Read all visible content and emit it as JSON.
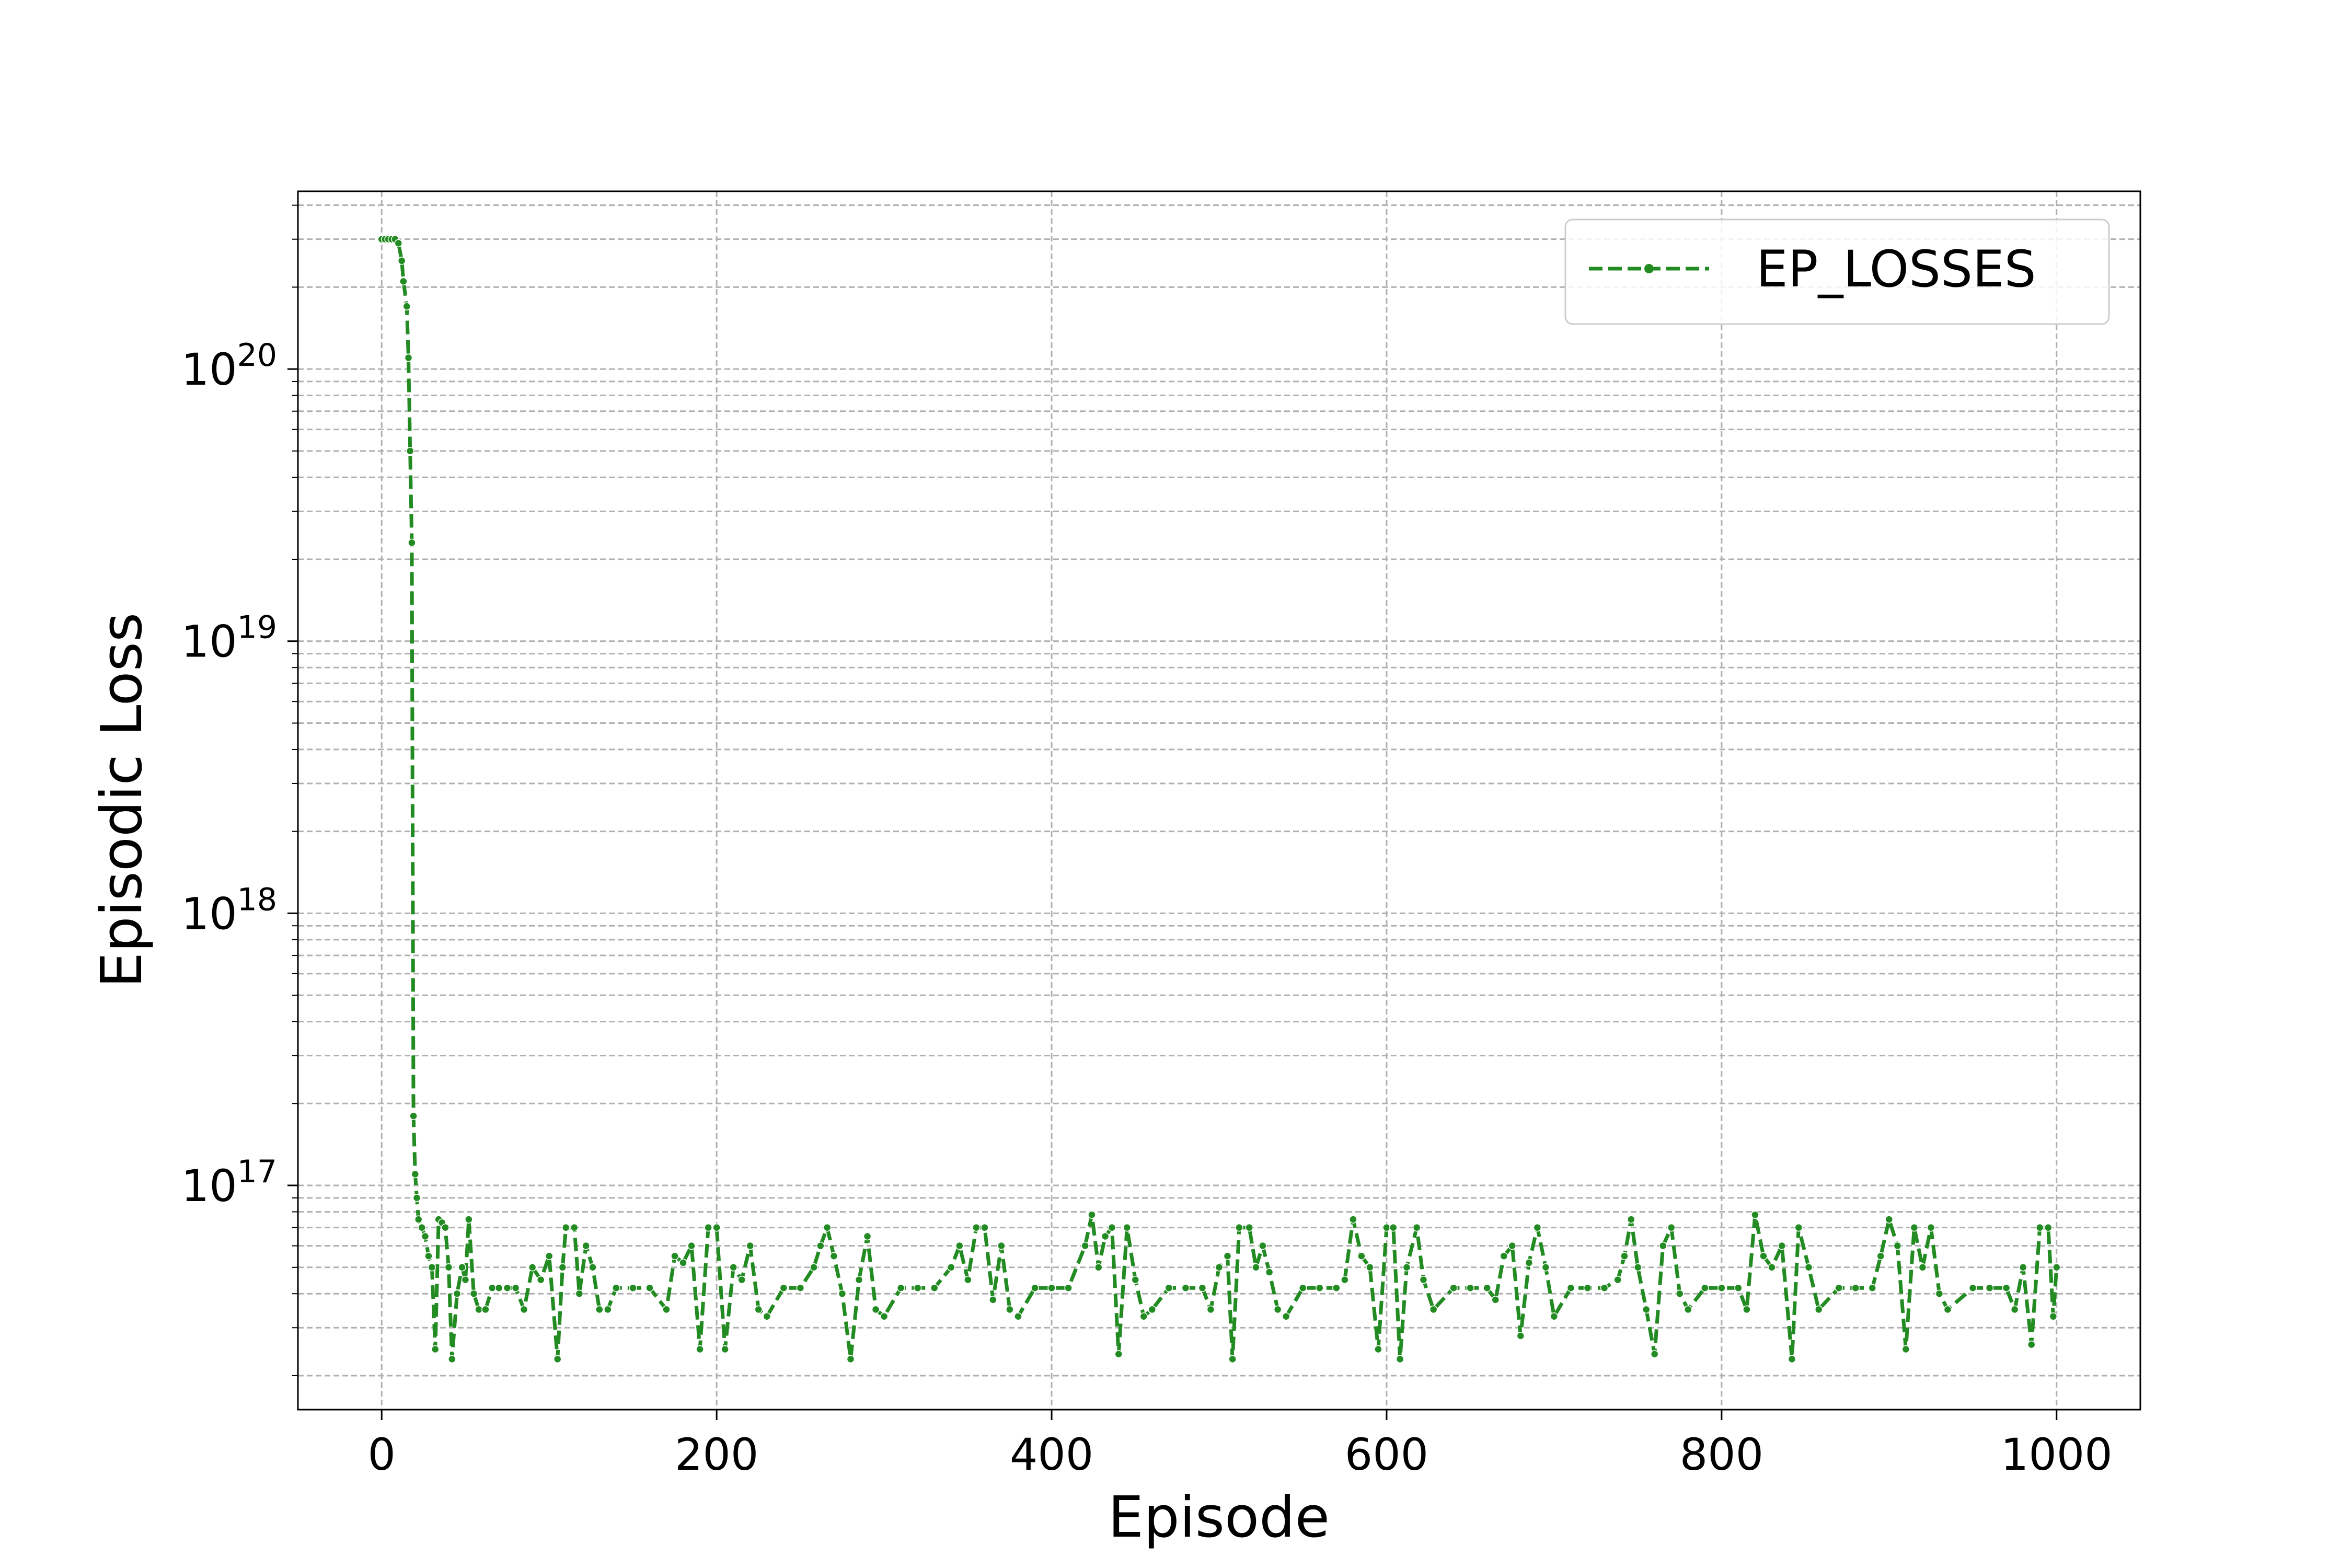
{
  "chart_data": {
    "type": "line",
    "title": "",
    "xlabel": "Episode",
    "ylabel": "Episodic Loss",
    "x_scale": "linear",
    "y_scale": "log",
    "xlim": [
      -50,
      1050
    ],
    "ylim": [
      1.5e+16,
      4.5e+20
    ],
    "x_ticks": [
      0,
      200,
      400,
      600,
      800,
      1000
    ],
    "x_tick_labels": [
      "0",
      "200",
      "400",
      "600",
      "800",
      "1000"
    ],
    "y_ticks": [
      1e+17,
      1e+18,
      1e+19,
      1e+20
    ],
    "y_tick_labels": [
      {
        "base": "10",
        "exp": "17"
      },
      {
        "base": "10",
        "exp": "18"
      },
      {
        "base": "10",
        "exp": "19"
      },
      {
        "base": "10",
        "exp": "20"
      }
    ],
    "grid": true,
    "grid_minor": true,
    "legend": {
      "placement": "top-right",
      "entries": [
        "EP_LOSSES"
      ]
    },
    "series": [
      {
        "name": "EP_LOSSES",
        "color": "#228B22",
        "line_style": "dashed",
        "marker": "circle",
        "points": [
          [
            0,
            3e+20
          ],
          [
            2,
            3e+20
          ],
          [
            4,
            3e+20
          ],
          [
            6,
            3e+20
          ],
          [
            8,
            3e+20
          ],
          [
            10,
            2.9e+20
          ],
          [
            12,
            2.5e+20
          ],
          [
            13,
            2.1e+20
          ],
          [
            15,
            1.7e+20
          ],
          [
            16,
            1.1e+20
          ],
          [
            17,
            5e+19
          ],
          [
            18,
            2.3e+19
          ],
          [
            19,
            1.8e+17
          ],
          [
            20,
            1.1e+17
          ],
          [
            21,
            9e+16
          ],
          [
            22,
            7.5e+16
          ],
          [
            24,
            7e+16
          ],
          [
            26,
            6.5e+16
          ],
          [
            28,
            5.5e+16
          ],
          [
            30,
            5e+16
          ],
          [
            32,
            2.5e+16
          ],
          [
            34,
            7.5e+16
          ],
          [
            36,
            7.3e+16
          ],
          [
            38,
            7e+16
          ],
          [
            40,
            5e+16
          ],
          [
            42,
            2.3e+16
          ],
          [
            45,
            4e+16
          ],
          [
            48,
            5e+16
          ],
          [
            50,
            4.5e+16
          ],
          [
            52,
            7.5e+16
          ],
          [
            55,
            4e+16
          ],
          [
            58,
            3.5e+16
          ],
          [
            62,
            3.5e+16
          ],
          [
            66,
            4.2e+16
          ],
          [
            70,
            4.2e+16
          ],
          [
            75,
            4.2e+16
          ],
          [
            80,
            4.2e+16
          ],
          [
            85,
            3.5e+16
          ],
          [
            90,
            5e+16
          ],
          [
            95,
            4.5e+16
          ],
          [
            100,
            5.5e+16
          ],
          [
            105,
            2.3e+16
          ],
          [
            108,
            5e+16
          ],
          [
            110,
            7e+16
          ],
          [
            115,
            7e+16
          ],
          [
            118,
            4e+16
          ],
          [
            122,
            6e+16
          ],
          [
            126,
            5e+16
          ],
          [
            130,
            3.5e+16
          ],
          [
            135,
            3.5e+16
          ],
          [
            140,
            4.2e+16
          ],
          [
            150,
            4.2e+16
          ],
          [
            160,
            4.2e+16
          ],
          [
            170,
            3.5e+16
          ],
          [
            175,
            5.5e+16
          ],
          [
            180,
            5.2e+16
          ],
          [
            185,
            6e+16
          ],
          [
            190,
            2.5e+16
          ],
          [
            195,
            7e+16
          ],
          [
            200,
            7e+16
          ],
          [
            205,
            2.5e+16
          ],
          [
            210,
            5e+16
          ],
          [
            215,
            4.5e+16
          ],
          [
            220,
            6e+16
          ],
          [
            225,
            3.5e+16
          ],
          [
            230,
            3.3e+16
          ],
          [
            240,
            4.2e+16
          ],
          [
            250,
            4.2e+16
          ],
          [
            258,
            5e+16
          ],
          [
            262,
            6e+16
          ],
          [
            266,
            7e+16
          ],
          [
            270,
            5.5e+16
          ],
          [
            275,
            4e+16
          ],
          [
            280,
            2.3e+16
          ],
          [
            285,
            4.5e+16
          ],
          [
            290,
            6.5e+16
          ],
          [
            295,
            3.5e+16
          ],
          [
            300,
            3.3e+16
          ],
          [
            310,
            4.2e+16
          ],
          [
            320,
            4.2e+16
          ],
          [
            330,
            4.2e+16
          ],
          [
            340,
            5e+16
          ],
          [
            345,
            6e+16
          ],
          [
            350,
            4.5e+16
          ],
          [
            355,
            7e+16
          ],
          [
            360,
            7e+16
          ],
          [
            365,
            3.8e+16
          ],
          [
            370,
            6e+16
          ],
          [
            375,
            3.5e+16
          ],
          [
            380,
            3.3e+16
          ],
          [
            390,
            4.2e+16
          ],
          [
            400,
            4.2e+16
          ],
          [
            410,
            4.2e+16
          ],
          [
            420,
            6e+16
          ],
          [
            424,
            7.8e+16
          ],
          [
            428,
            5e+16
          ],
          [
            432,
            6.5e+16
          ],
          [
            436,
            7e+16
          ],
          [
            440,
            2.4e+16
          ],
          [
            445,
            7e+16
          ],
          [
            450,
            4.5e+16
          ],
          [
            455,
            3.3e+16
          ],
          [
            460,
            3.5e+16
          ],
          [
            470,
            4.2e+16
          ],
          [
            480,
            4.2e+16
          ],
          [
            490,
            4.2e+16
          ],
          [
            495,
            3.5e+16
          ],
          [
            500,
            5e+16
          ],
          [
            505,
            5.5e+16
          ],
          [
            508,
            2.3e+16
          ],
          [
            512,
            7e+16
          ],
          [
            518,
            7e+16
          ],
          [
            522,
            5e+16
          ],
          [
            526,
            6e+16
          ],
          [
            530,
            4.8e+16
          ],
          [
            535,
            3.5e+16
          ],
          [
            540,
            3.3e+16
          ],
          [
            550,
            4.2e+16
          ],
          [
            560,
            4.2e+16
          ],
          [
            570,
            4.2e+16
          ],
          [
            575,
            4.5e+16
          ],
          [
            580,
            7.5e+16
          ],
          [
            585,
            5.5e+16
          ],
          [
            590,
            5e+16
          ],
          [
            595,
            2.5e+16
          ],
          [
            600,
            7e+16
          ],
          [
            604,
            7e+16
          ],
          [
            608,
            2.3e+16
          ],
          [
            612,
            5e+16
          ],
          [
            618,
            7e+16
          ],
          [
            622,
            4.5e+16
          ],
          [
            628,
            3.5e+16
          ],
          [
            640,
            4.2e+16
          ],
          [
            650,
            4.2e+16
          ],
          [
            660,
            4.2e+16
          ],
          [
            665,
            3.8e+16
          ],
          [
            670,
            5.5e+16
          ],
          [
            675,
            6e+16
          ],
          [
            680,
            2.8e+16
          ],
          [
            685,
            5.2e+16
          ],
          [
            690,
            7e+16
          ],
          [
            695,
            5e+16
          ],
          [
            700,
            3.3e+16
          ],
          [
            710,
            4.2e+16
          ],
          [
            720,
            4.2e+16
          ],
          [
            730,
            4.2e+16
          ],
          [
            738,
            4.5e+16
          ],
          [
            742,
            5.5e+16
          ],
          [
            746,
            7.5e+16
          ],
          [
            750,
            5e+16
          ],
          [
            755,
            3.5e+16
          ],
          [
            760,
            2.4e+16
          ],
          [
            765,
            6e+16
          ],
          [
            770,
            7e+16
          ],
          [
            775,
            4e+16
          ],
          [
            780,
            3.5e+16
          ],
          [
            790,
            4.2e+16
          ],
          [
            800,
            4.2e+16
          ],
          [
            810,
            4.2e+16
          ],
          [
            815,
            3.5e+16
          ],
          [
            820,
            7.8e+16
          ],
          [
            825,
            5.5e+16
          ],
          [
            830,
            5e+16
          ],
          [
            836,
            6e+16
          ],
          [
            842,
            2.3e+16
          ],
          [
            846,
            7e+16
          ],
          [
            852,
            5e+16
          ],
          [
            858,
            3.5e+16
          ],
          [
            870,
            4.2e+16
          ],
          [
            880,
            4.2e+16
          ],
          [
            890,
            4.2e+16
          ],
          [
            895,
            5.5e+16
          ],
          [
            900,
            7.5e+16
          ],
          [
            905,
            6e+16
          ],
          [
            910,
            2.5e+16
          ],
          [
            915,
            7e+16
          ],
          [
            920,
            5e+16
          ],
          [
            925,
            7e+16
          ],
          [
            930,
            4e+16
          ],
          [
            935,
            3.5e+16
          ],
          [
            950,
            4.2e+16
          ],
          [
            960,
            4.2e+16
          ],
          [
            970,
            4.2e+16
          ],
          [
            975,
            3.5e+16
          ],
          [
            980,
            5e+16
          ],
          [
            985,
            2.6e+16
          ],
          [
            990,
            7e+16
          ],
          [
            995,
            7e+16
          ],
          [
            998,
            3.3e+16
          ],
          [
            1000,
            5e+16
          ]
        ]
      }
    ]
  }
}
